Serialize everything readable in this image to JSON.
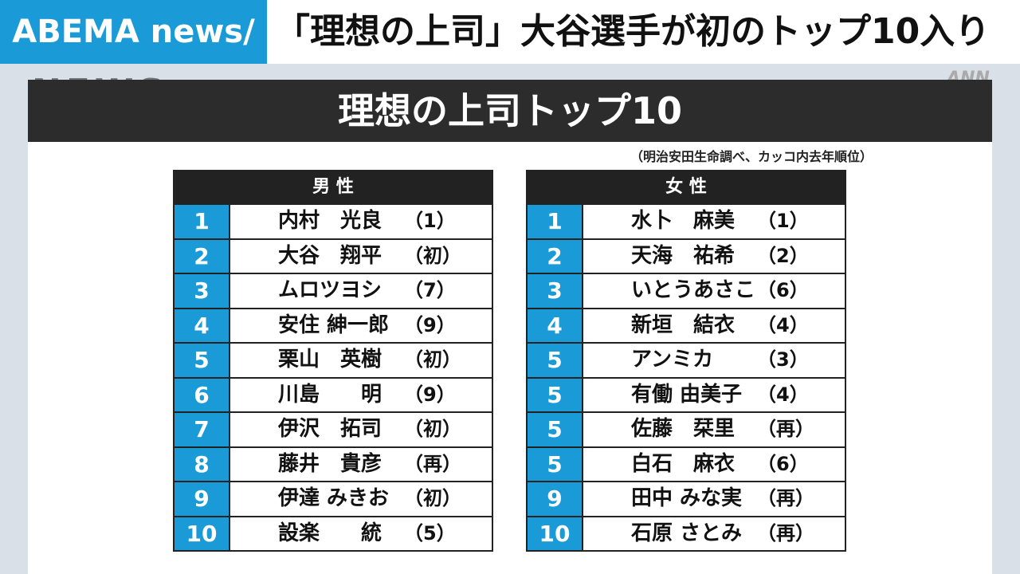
{
  "header": {
    "logo": "ABEMA news/",
    "headline": "「理想の上司」大谷選手が初のトップ10入り"
  },
  "watermark": {
    "left": "NEWS",
    "right": "ANN"
  },
  "panel": {
    "title": "理想の上司トップ10",
    "note": "（明治安田生命調べ、カッコ内去年順位）"
  },
  "tables": [
    {
      "heading": "男 性",
      "rows": [
        [
          1,
          "内村　光良",
          "（1）"
        ],
        [
          2,
          "大谷　翔平",
          "（初）"
        ],
        [
          3,
          "ムロツヨシ",
          "（7）"
        ],
        [
          4,
          "安住 紳一郎",
          "（9）"
        ],
        [
          5,
          "栗山　英樹",
          "（初）"
        ],
        [
          6,
          "川島　　明",
          "（9）"
        ],
        [
          7,
          "伊沢　拓司",
          "（初）"
        ],
        [
          8,
          "藤井　貴彦",
          "（再）"
        ],
        [
          9,
          "伊達 みきお",
          "（初）"
        ],
        [
          10,
          "設楽　　統",
          "（5）"
        ]
      ]
    },
    {
      "heading": "女 性",
      "rows": [
        [
          1,
          "水卜　麻美",
          "（1）"
        ],
        [
          2,
          "天海　祐希",
          "（2）"
        ],
        [
          3,
          "いとうあさこ",
          "（6）"
        ],
        [
          4,
          "新垣　結衣",
          "（4）"
        ],
        [
          5,
          "アンミカ",
          "（3）"
        ],
        [
          5,
          "有働 由美子",
          "（4）"
        ],
        [
          5,
          "佐藤　栞里",
          "（再）"
        ],
        [
          5,
          "白石　麻衣",
          "（6）"
        ],
        [
          9,
          "田中 みな実",
          "（再）"
        ],
        [
          10,
          "石原 さとみ",
          "（再）"
        ]
      ]
    }
  ]
}
